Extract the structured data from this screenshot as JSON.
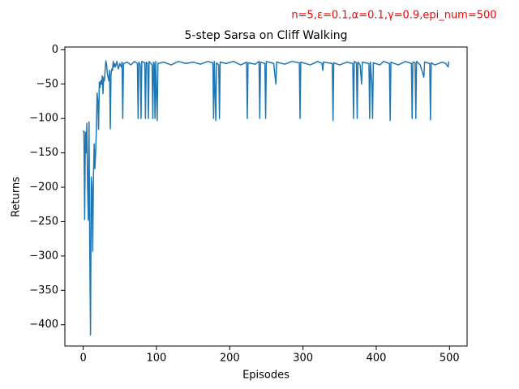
{
  "chart_data": {
    "type": "line",
    "title": "5-step Sarsa on Cliff Walking",
    "annotation": "n=5,ε=0.1,α=0.1,γ=0.9,epi_num=500",
    "xlabel": "Episodes",
    "ylabel": "Returns",
    "xlim": [
      -25,
      524
    ],
    "ylim": [
      -431,
      4
    ],
    "xticks": [
      0,
      100,
      200,
      300,
      400,
      500
    ],
    "yticks": [
      0,
      {
        "value": -50,
        "label": "−50"
      },
      {
        "value": -100,
        "label": "−100"
      },
      {
        "value": -150,
        "label": "−150"
      },
      {
        "value": -200,
        "label": "−200"
      },
      {
        "value": -250,
        "label": "−250"
      },
      {
        "value": -300,
        "label": "−300"
      },
      {
        "value": -350,
        "label": "−350"
      },
      {
        "value": -400,
        "label": "−400"
      }
    ],
    "x": [
      0,
      1,
      2,
      3,
      4,
      5,
      6,
      7,
      8,
      9,
      10,
      11,
      12,
      13,
      14,
      15,
      16,
      17,
      18,
      19,
      20,
      21,
      22,
      23,
      24,
      25,
      26,
      27,
      28,
      29,
      30,
      31,
      32,
      33,
      34,
      35,
      36,
      37,
      38,
      39,
      40,
      41,
      42,
      43,
      44,
      46,
      48,
      50,
      52,
      53,
      54,
      55,
      60,
      65,
      70,
      74,
      75,
      76,
      78,
      79,
      80,
      84,
      85,
      86,
      88,
      89,
      90,
      94,
      95,
      96,
      97,
      98,
      99,
      101,
      102,
      110,
      120,
      130,
      140,
      150,
      160,
      170,
      177,
      178,
      179,
      181,
      182,
      185,
      186,
      187,
      195,
      205,
      215,
      223,
      224,
      225,
      235,
      240,
      241,
      242,
      248,
      249,
      250,
      260,
      263,
      264,
      275,
      285,
      295,
      296,
      297,
      310,
      320,
      326,
      327,
      328,
      340,
      341,
      342,
      350,
      360,
      368,
      369,
      370,
      373,
      374,
      375,
      378,
      380,
      381,
      390,
      391,
      392,
      394,
      395,
      396,
      405,
      410,
      418,
      419,
      420,
      430,
      440,
      448,
      449,
      450,
      453,
      454,
      455,
      460,
      465,
      466,
      473,
      474,
      475,
      480,
      490,
      495,
      498,
      499
    ],
    "series": [
      {
        "color": "#1f77b4",
        "values": [
          -120,
          -118,
          -247,
          -120,
          -150,
          -107,
          -200,
          -248,
          -105,
          -300,
          -415,
          -185,
          -200,
          -293,
          -185,
          -137,
          -173,
          -150,
          -115,
          -63,
          -75,
          -116,
          -47,
          -55,
          -45,
          -50,
          -38,
          -64,
          -40,
          -45,
          -28,
          -16,
          -22,
          -35,
          -40,
          -45,
          -30,
          -115,
          -35,
          -28,
          -30,
          -17,
          -25,
          -20,
          -25,
          -17,
          -28,
          -20,
          -25,
          -18,
          -100,
          -20,
          -18,
          -22,
          -17,
          -20,
          -100,
          -18,
          -22,
          -100,
          -17,
          -19,
          -100,
          -18,
          -20,
          -100,
          -17,
          -22,
          -100,
          -18,
          -20,
          -100,
          -17,
          -103,
          -20,
          -18,
          -22,
          -17,
          -20,
          -18,
          -21,
          -17,
          -19,
          -100,
          -17,
          -103,
          -19,
          -22,
          -100,
          -18,
          -20,
          -17,
          -22,
          -18,
          -100,
          -19,
          -21,
          -17,
          -100,
          -18,
          -20,
          -100,
          -17,
          -20,
          -50,
          -18,
          -21,
          -17,
          -19,
          -100,
          -18,
          -22,
          -17,
          -20,
          -30,
          -18,
          -20,
          -103,
          -19,
          -22,
          -18,
          -20,
          -100,
          -17,
          -19,
          -100,
          -18,
          -22,
          -50,
          -18,
          -20,
          -100,
          -18,
          -50,
          -100,
          -19,
          -22,
          -17,
          -20,
          -103,
          -18,
          -22,
          -17,
          -20,
          -100,
          -18,
          -19,
          -100,
          -17,
          -22,
          -40,
          -18,
          -20,
          -102,
          -19,
          -22,
          -18,
          -20,
          -25,
          -17
        ]
      }
    ]
  }
}
